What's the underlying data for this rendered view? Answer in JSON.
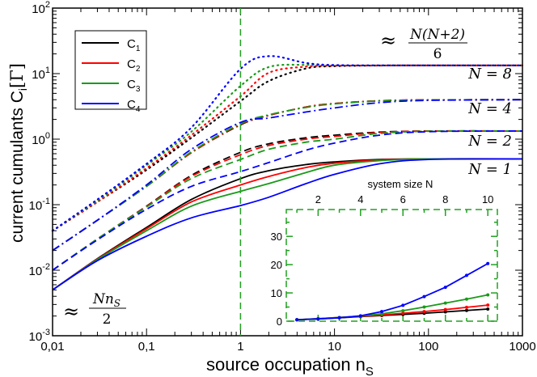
{
  "chart_data": {
    "type": "line",
    "xlabel": "source occupation n",
    "xlabel_sub": "S",
    "ylabel": "current cumulants C",
    "ylabel_sub": "i",
    "ylabel_unit": "[Γ]",
    "x_scale": "log",
    "y_scale": "log",
    "xlim": [
      0.01,
      1000
    ],
    "ylim": [
      0.001,
      100
    ],
    "x_ticks": [
      0.01,
      0.1,
      1,
      10,
      100,
      1000
    ],
    "x_tick_labels": [
      "0,01",
      "0,1",
      "1",
      "10",
      "100",
      "1000"
    ],
    "y_ticks": [
      0.001,
      0.01,
      0.1,
      1,
      10,
      100
    ],
    "y_tick_labels": [
      {
        "base": "10",
        "exp": "-3"
      },
      {
        "base": "10",
        "exp": "-2"
      },
      {
        "base": "10",
        "exp": "-1"
      },
      {
        "base": "10",
        "exp": "0"
      },
      {
        "base": "10",
        "exp": "1"
      },
      {
        "base": "10",
        "exp": "2"
      }
    ],
    "grid": false,
    "vertical_reference_line": {
      "x": 1,
      "color": "#22a022",
      "style": "dashed"
    },
    "legend": {
      "placement": "top-left",
      "entries": [
        {
          "label": "C",
          "sub": "1",
          "color": "#000000"
        },
        {
          "label": "C",
          "sub": "2",
          "color": "#ff0000"
        },
        {
          "label": "C",
          "sub": "3",
          "color": "#1a9a1a"
        },
        {
          "label": "C",
          "sub": "4",
          "color": "#0000ff"
        }
      ]
    },
    "line_styles": {
      "1": "solid",
      "2": "dashed",
      "4": "dash-dot",
      "8": "dotted"
    },
    "x": [
      0.01,
      0.03,
      0.1,
      0.3,
      1,
      2,
      5,
      10,
      30,
      100,
      1000
    ],
    "series": [
      {
        "N": 1,
        "cumulant": 1,
        "values": [
          0.005,
          0.015,
          0.045,
          0.12,
          0.25,
          0.33,
          0.41,
          0.45,
          0.49,
          0.5,
          0.5
        ]
      },
      {
        "N": 1,
        "cumulant": 2,
        "values": [
          0.005,
          0.0148,
          0.043,
          0.11,
          0.2,
          0.27,
          0.37,
          0.43,
          0.48,
          0.5,
          0.5
        ]
      },
      {
        "N": 1,
        "cumulant": 3,
        "values": [
          0.005,
          0.0145,
          0.04,
          0.095,
          0.16,
          0.21,
          0.31,
          0.4,
          0.47,
          0.5,
          0.5
        ]
      },
      {
        "N": 1,
        "cumulant": 4,
        "values": [
          0.005,
          0.014,
          0.033,
          0.063,
          0.097,
          0.13,
          0.21,
          0.29,
          0.42,
          0.49,
          0.5
        ]
      },
      {
        "N": 2,
        "cumulant": 1,
        "values": [
          0.01,
          0.03,
          0.095,
          0.28,
          0.63,
          0.85,
          1.05,
          1.15,
          1.28,
          1.33,
          1.333
        ]
      },
      {
        "N": 2,
        "cumulant": 2,
        "values": [
          0.01,
          0.03,
          0.094,
          0.27,
          0.58,
          0.8,
          1.0,
          1.1,
          1.26,
          1.33,
          1.333
        ]
      },
      {
        "N": 2,
        "cumulant": 3,
        "values": [
          0.01,
          0.03,
          0.092,
          0.25,
          0.49,
          0.7,
          0.9,
          1.0,
          1.22,
          1.32,
          1.333
        ]
      },
      {
        "N": 2,
        "cumulant": 4,
        "values": [
          0.01,
          0.029,
          0.085,
          0.19,
          0.32,
          0.44,
          0.68,
          0.87,
          1.15,
          1.3,
          1.333
        ]
      },
      {
        "N": 4,
        "cumulant": 1,
        "values": [
          0.02,
          0.058,
          0.19,
          0.62,
          1.65,
          2.3,
          3.1,
          3.5,
          3.85,
          3.97,
          4
        ]
      },
      {
        "N": 4,
        "cumulant": 2,
        "values": [
          0.02,
          0.058,
          0.19,
          0.62,
          1.68,
          2.3,
          3.1,
          3.5,
          3.85,
          3.97,
          4
        ]
      },
      {
        "N": 4,
        "cumulant": 3,
        "values": [
          0.02,
          0.058,
          0.19,
          0.64,
          1.72,
          2.35,
          3.05,
          3.45,
          3.83,
          3.96,
          4
        ]
      },
      {
        "N": 4,
        "cumulant": 4,
        "values": [
          0.02,
          0.058,
          0.2,
          0.7,
          1.8,
          2.1,
          2.6,
          3.0,
          3.6,
          3.9,
          4
        ]
      },
      {
        "N": 8,
        "cumulant": 1,
        "values": [
          0.04,
          0.11,
          0.34,
          1.05,
          3.8,
          7.7,
          12.0,
          13.0,
          13.3,
          13.33,
          13.33
        ]
      },
      {
        "N": 8,
        "cumulant": 2,
        "values": [
          0.04,
          0.11,
          0.36,
          1.15,
          4.5,
          10.3,
          12.8,
          13.2,
          13.3,
          13.33,
          13.33
        ]
      },
      {
        "N": 8,
        "cumulant": 3,
        "values": [
          0.04,
          0.115,
          0.4,
          1.3,
          6.5,
          12.6,
          13.6,
          13.4,
          13.33,
          13.33,
          13.33
        ]
      },
      {
        "N": 8,
        "cumulant": 4,
        "values": [
          0.04,
          0.12,
          0.42,
          1.5,
          11.8,
          18.5,
          14.5,
          13.5,
          13.35,
          13.33,
          13.33
        ]
      }
    ],
    "annotations": {
      "approx": "≈",
      "high_num": "N(N+2)",
      "high_den": "6",
      "low_num": "Nn",
      "low_num_sub": "S",
      "low_den": "2",
      "n_labels": [
        "N = 8",
        "N = 4",
        "N = 2",
        "N = 1"
      ]
    },
    "inset": {
      "type": "line",
      "xlabel": "system size N",
      "x_ticks": [
        2,
        4,
        6,
        8,
        10
      ],
      "y_ticks": [
        0,
        10,
        20,
        30
      ],
      "xlim": [
        0.5,
        10.45
      ],
      "ylim": [
        0,
        39.5
      ],
      "frame_color": "#22a022",
      "x": [
        1,
        2,
        3,
        4,
        5,
        6,
        7,
        8,
        9,
        10
      ],
      "series": [
        {
          "cumulant": 1,
          "values": [
            0.5,
            0.8,
            1.2,
            1.6,
            2.0,
            2.4,
            2.8,
            3.3,
            3.8,
            4.3
          ]
        },
        {
          "cumulant": 2,
          "values": [
            0.5,
            0.9,
            1.3,
            1.7,
            2.2,
            2.8,
            3.4,
            4.1,
            4.9,
            5.7
          ]
        },
        {
          "cumulant": 3,
          "values": [
            0.5,
            0.9,
            1.3,
            1.8,
            2.6,
            3.7,
            5.0,
            6.4,
            7.8,
            9.3
          ]
        },
        {
          "cumulant": 4,
          "values": [
            0.5,
            0.8,
            1.2,
            1.9,
            3.4,
            5.6,
            8.7,
            12.0,
            16.2,
            20.4
          ]
        }
      ]
    }
  }
}
